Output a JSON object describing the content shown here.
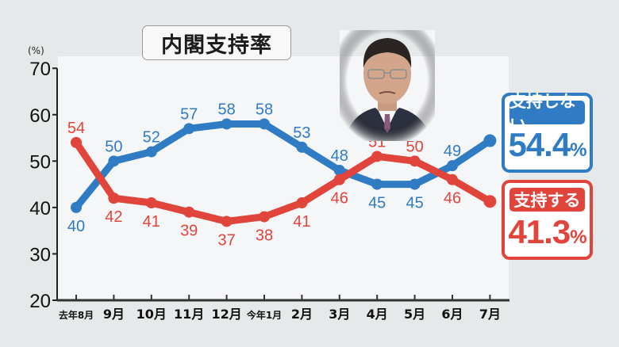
{
  "title": "内閣支持率",
  "y_unit": "(%)",
  "legend": {
    "disapprove": {
      "label": "支持しない",
      "value": "54.4",
      "unit": "%"
    },
    "approve": {
      "label": "支持する",
      "value": "41.3",
      "unit": "%"
    }
  },
  "colors": {
    "disapprove": "#2f7bc4",
    "approve": "#e0443a",
    "axis": "#222222",
    "panel": "#f5f6f8",
    "background": "#e6e9ea"
  },
  "photo": {
    "description": "portrait-of-prime-minister"
  },
  "chart_data": {
    "type": "line",
    "title": "内閣支持率",
    "xlabel": "",
    "ylabel": "(%)",
    "ylim": [
      20,
      70
    ],
    "yticks": [
      20,
      30,
      40,
      50,
      60,
      70
    ],
    "grid": false,
    "legend_position": "right",
    "categories": [
      "去年8月",
      "9月",
      "10月",
      "11月",
      "12月",
      "今年1月",
      "2月",
      "3月",
      "4月",
      "5月",
      "6月",
      "7月"
    ],
    "series": [
      {
        "name": "支持しない",
        "color": "#2f7bc4",
        "values": [
          40,
          50,
          52,
          57,
          58,
          58,
          53,
          48,
          45,
          45,
          49,
          54.4
        ],
        "labels": [
          "40",
          "50",
          "52",
          "57",
          "58",
          "58",
          "53",
          "48",
          "45",
          "45",
          "49",
          ""
        ],
        "label_pos": [
          "below",
          "above",
          "above",
          "above",
          "above",
          "above",
          "above",
          "above",
          "below",
          "below",
          "above",
          ""
        ]
      },
      {
        "name": "支持する",
        "color": "#e0443a",
        "values": [
          54,
          42,
          41,
          39,
          37,
          38,
          41,
          46,
          51,
          50,
          46,
          41.3
        ],
        "labels": [
          "54",
          "42",
          "41",
          "39",
          "37",
          "38",
          "41",
          "46",
          "51",
          "50",
          "46",
          ""
        ],
        "label_pos": [
          "above",
          "below",
          "below",
          "below",
          "below",
          "below",
          "below",
          "below",
          "above",
          "above",
          "below",
          ""
        ]
      }
    ],
    "annotations": [
      {
        "text": "支持しない 54.4%",
        "series": "支持しない"
      },
      {
        "text": "支持する 41.3%",
        "series": "支持する"
      }
    ]
  }
}
